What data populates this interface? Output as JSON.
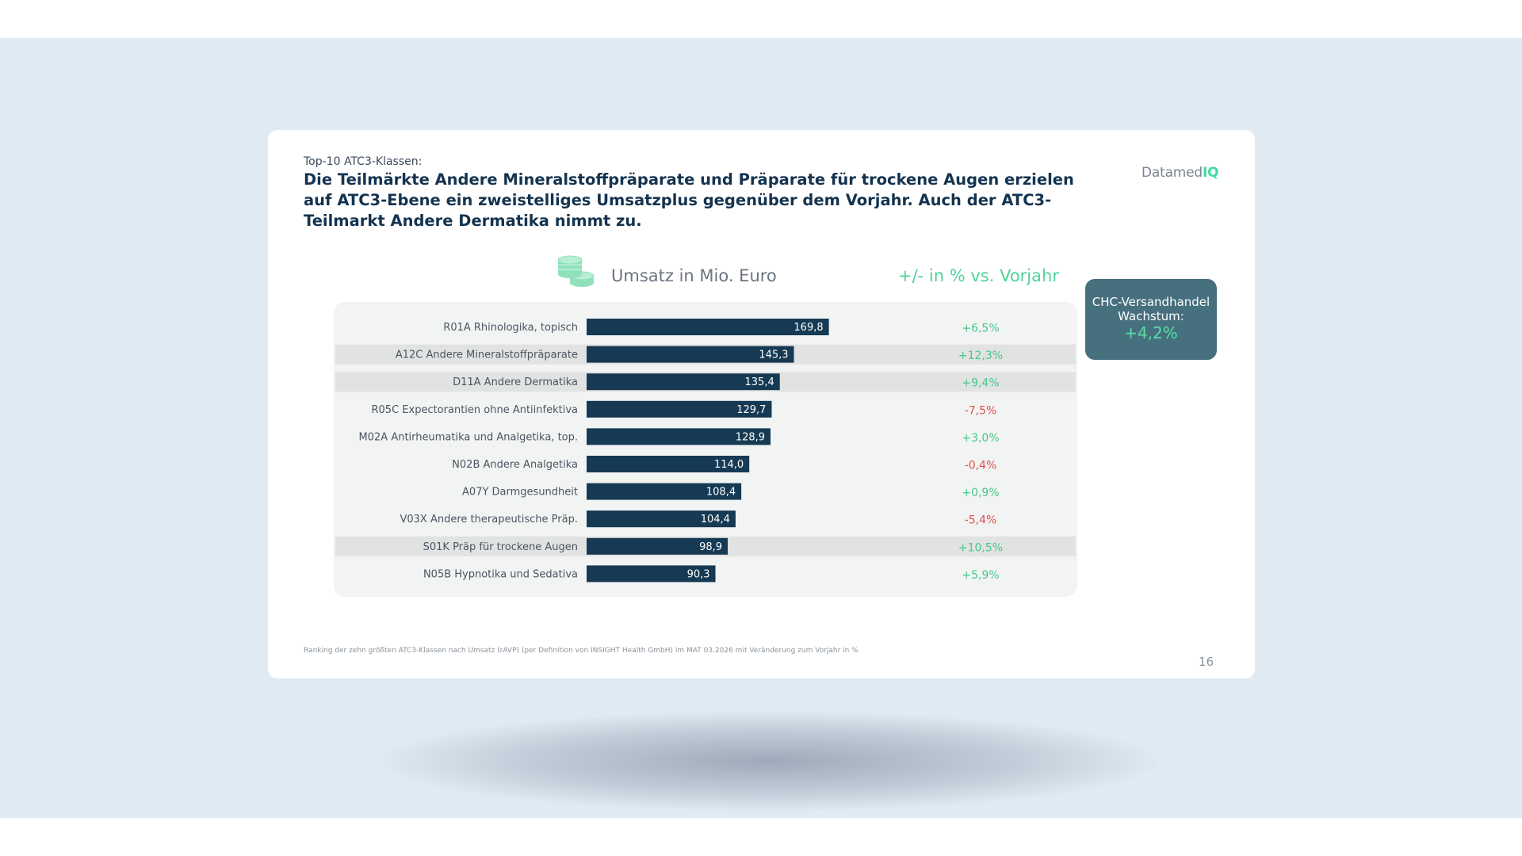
{
  "slide": {
    "kicker": "Top-10 ATC3-Klassen:",
    "headline": "Die Teilmärkte Andere Mineralstoffpräparate und Präparate für trockene Augen erzielen auf ATC3-Ebene ein zweistelliges Umsatzplus gegenüber dem Vorjahr. Auch der ATC3-Teilmarkt Andere Dermatika nimmt zu.",
    "logo_main": "Datamed",
    "logo_accent": "IQ",
    "footnote": "Ranking der zehn größten ATC3-Klassen nach Umsatz (rAVP) (per Definition von INSIGHT Health GmbH) im MAT 03.2026 mit Veränderung zum Vorjahr in %",
    "page_number": "16",
    "coins_icon": "coins-icon"
  },
  "badge": {
    "line1": "CHC-Versandhandel",
    "line2": "Wachstum:",
    "value": "+4,2%"
  },
  "colors": {
    "bar": "#163a54",
    "positive": "#45c98a",
    "negative": "#e0504a",
    "highlight_row": "#e1e2e2",
    "panel": "#f2f3f3",
    "badge": "#47707f",
    "headline": "#14334f"
  },
  "chart_data": {
    "type": "bar",
    "orientation": "horizontal",
    "title_left": "Umsatz in Mio. Euro",
    "title_right": "+/- in % vs. Vorjahr",
    "categories": [
      "R01A  Rhinologika, topisch",
      "A12C  Andere Mineralstoffpräparate",
      "D11A  Andere Dermatika",
      "R05C  Expectorantien ohne Antiinfektiva",
      "M02A  Antirheumatika und Analgetika, top.",
      "N02B  Andere Analgetika",
      "A07Y  Darmgesundheit",
      "V03X  Andere therapeutische Präp.",
      "S01K  Präp für trockene Augen",
      "N05B  Hypnotika und Sedativa"
    ],
    "values": [
      169.8,
      145.3,
      135.4,
      129.7,
      128.9,
      114.0,
      108.4,
      104.4,
      98.9,
      90.3
    ],
    "value_labels": [
      "169,8",
      "145,3",
      "135,4",
      "129,7",
      "128,9",
      "114,0",
      "108,4",
      "104,4",
      "98,9",
      "90,3"
    ],
    "change_pct": [
      6.5,
      12.3,
      9.4,
      -7.5,
      3.0,
      -0.4,
      0.9,
      -5.4,
      10.5,
      5.9
    ],
    "change_labels": [
      "+6,5%",
      "+12,3%",
      "+9,4%",
      "-7,5%",
      "+3,0%",
      "-0,4%",
      "+0,9%",
      "-5,4%",
      "+10,5%",
      "+5,9%"
    ],
    "highlighted": [
      false,
      true,
      true,
      false,
      false,
      false,
      false,
      false,
      true,
      false
    ],
    "xlim": [
      0,
      170
    ]
  }
}
